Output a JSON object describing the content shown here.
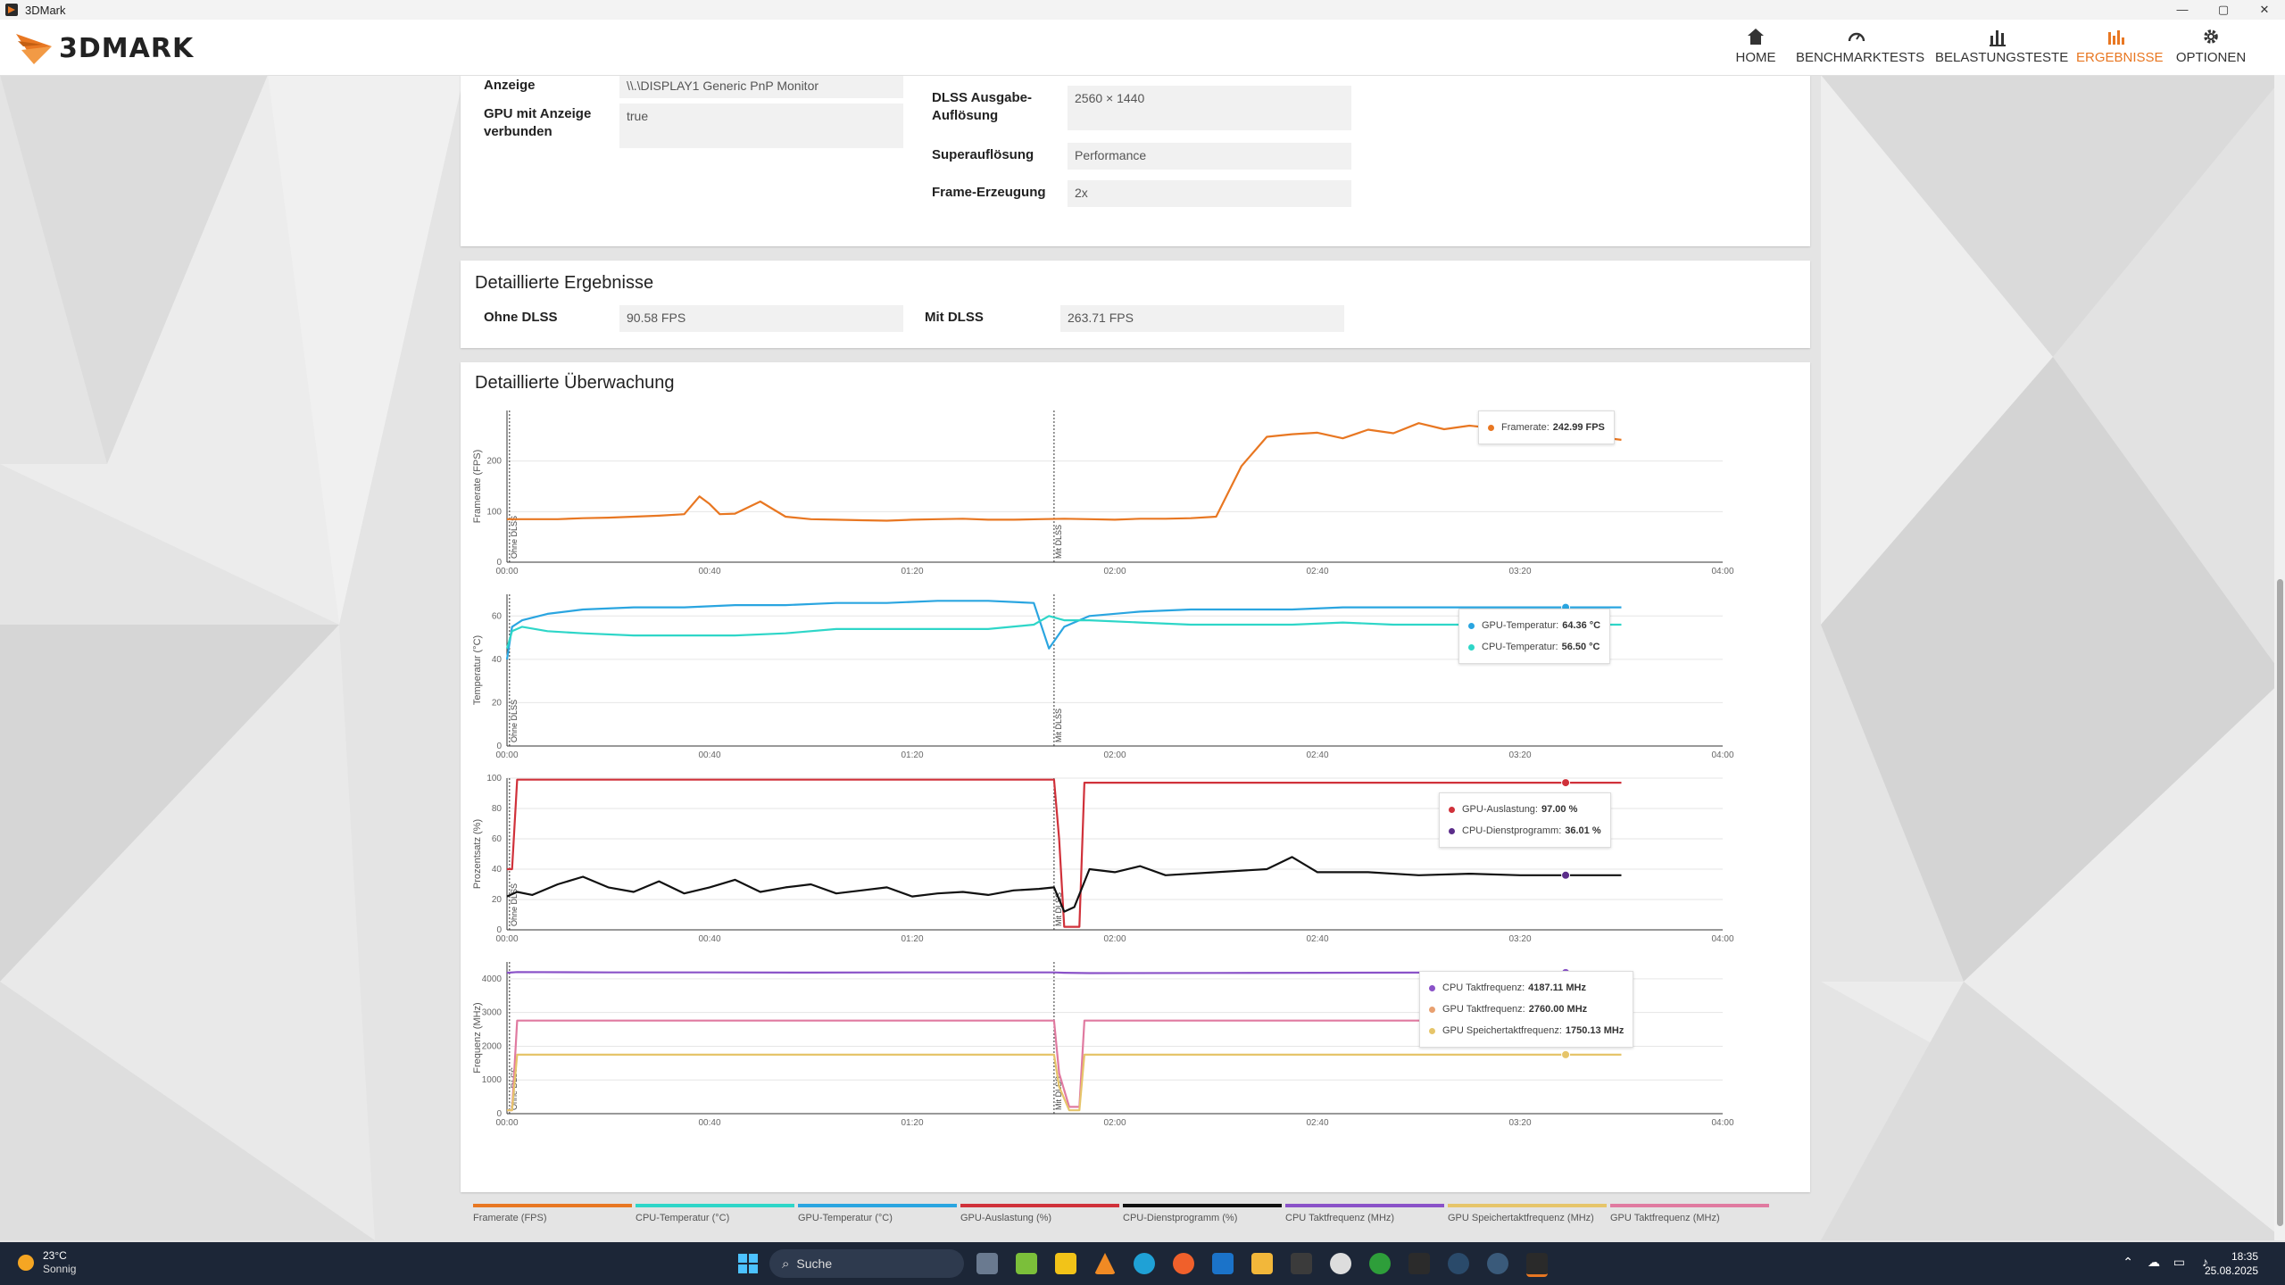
{
  "window": {
    "title": "3DMark",
    "controls": [
      "—",
      "▢",
      "✕"
    ]
  },
  "nav": {
    "logo": "3DMARK",
    "items": [
      {
        "label": "HOME",
        "icon": "home-icon"
      },
      {
        "label": "BENCHMARKTESTS",
        "icon": "gauge-icon"
      },
      {
        "label": "BELASTUNGSTESTE",
        "icon": "bar-chart-icon"
      },
      {
        "label": "ERGEBNISSE",
        "icon": "results-icon",
        "active": true
      },
      {
        "label": "OPTIONEN",
        "icon": "gear-icon"
      }
    ]
  },
  "top_panel": {
    "anzeige_label": "Anzeige",
    "anzeige_value": "\\\\.\\DISPLAY1 Generic PnP Monitor",
    "gpu_label": "GPU mit Anzeige verbunden",
    "gpu_value": "true",
    "dlss_res_label": "DLSS Ausgabe-Auflösung",
    "dlss_res_value": "2560 × 1440",
    "superres_label": "Superauflösung",
    "superres_value": "Performance",
    "framegen_label": "Frame-Erzeugung",
    "framegen_value": "2x"
  },
  "results": {
    "title": "Detaillierte Ergebnisse",
    "ohne_label": "Ohne DLSS",
    "ohne_value": "90.58 FPS",
    "mit_label": "Mit DLSS",
    "mit_value": "263.71 FPS"
  },
  "monitoring": {
    "title": "Detaillierte Überwachung",
    "x_ticks": [
      "00:00",
      "00:40",
      "01:20",
      "02:00",
      "02:40",
      "03:20",
      "04:00"
    ],
    "marker_ohne": "Ohne DLSS",
    "marker_mit": "Mit DLSS"
  },
  "chart_data": [
    {
      "type": "line",
      "ylabel": "Framerate (FPS)",
      "ylim": [
        0,
        300
      ],
      "y_ticks": [
        0,
        100,
        200
      ],
      "x_range_s": [
        0,
        240
      ],
      "series": [
        {
          "name": "Framerate (FPS)",
          "color": "#e87722",
          "x": [
            0,
            5,
            10,
            15,
            20,
            25,
            30,
            35,
            38,
            40,
            42,
            45,
            50,
            55,
            60,
            65,
            70,
            75,
            80,
            85,
            90,
            95,
            100,
            105,
            110,
            115,
            120,
            125,
            130,
            135,
            140,
            145,
            150,
            155,
            160,
            165,
            170,
            175,
            180,
            185,
            190,
            195,
            200,
            205,
            210,
            215,
            220
          ],
          "y": [
            85,
            85,
            85,
            87,
            88,
            90,
            92,
            95,
            130,
            115,
            95,
            96,
            120,
            90,
            85,
            84,
            83,
            82,
            84,
            85,
            86,
            84,
            84,
            85,
            86,
            85,
            84,
            86,
            86,
            87,
            90,
            190,
            248,
            253,
            256,
            245,
            262,
            255,
            275,
            263,
            270,
            265,
            265,
            258,
            242,
            248,
            242
          ]
        }
      ],
      "tooltip": [
        {
          "label": "Framerate:",
          "value": "242.99 FPS",
          "color": "#e87722"
        }
      ]
    },
    {
      "type": "line",
      "ylabel": "Temperatur (°C)",
      "ylim": [
        0,
        70
      ],
      "y_ticks": [
        0,
        20,
        40,
        60
      ],
      "x_range_s": [
        0,
        240
      ],
      "series": [
        {
          "name": "GPU-Temperatur (°C)",
          "color": "#2aa5e0",
          "x": [
            0,
            1,
            3,
            8,
            15,
            25,
            35,
            45,
            55,
            65,
            75,
            85,
            95,
            104,
            107,
            110,
            115,
            125,
            135,
            145,
            155,
            165,
            175,
            185,
            195,
            205,
            215,
            220
          ],
          "y": [
            40,
            55,
            58,
            61,
            63,
            64,
            64,
            65,
            65,
            66,
            66,
            67,
            67,
            66,
            45,
            55,
            60,
            62,
            63,
            63,
            63,
            64,
            64,
            64,
            64,
            64,
            64,
            64
          ]
        },
        {
          "name": "CPU-Temperatur (°C)",
          "color": "#2ed6c8",
          "x": [
            0,
            1,
            3,
            8,
            15,
            25,
            35,
            45,
            55,
            65,
            75,
            85,
            95,
            104,
            107,
            110,
            115,
            125,
            135,
            145,
            155,
            165,
            175,
            185,
            195,
            205,
            215,
            220
          ],
          "y": [
            45,
            53,
            55,
            53,
            52,
            51,
            51,
            51,
            52,
            54,
            54,
            54,
            54,
            56,
            60,
            58,
            58,
            57,
            56,
            56,
            56,
            57,
            56,
            56,
            56,
            57,
            56,
            56
          ]
        }
      ],
      "tooltip": [
        {
          "label": "GPU-Temperatur:",
          "value": "64.36 °C",
          "color": "#2aa5e0"
        },
        {
          "label": "CPU-Temperatur:",
          "value": "56.50 °C",
          "color": "#2ed6c8"
        }
      ]
    },
    {
      "type": "line",
      "ylabel": "Prozentsatz (%)",
      "ylim": [
        0,
        100
      ],
      "y_ticks": [
        0,
        20,
        40,
        60,
        80,
        100
      ],
      "x_range_s": [
        0,
        240
      ],
      "series": [
        {
          "name": "GPU-Auslastung (%)",
          "color": "#d0313a",
          "x": [
            0,
            1,
            2,
            108,
            109,
            110,
            111,
            113,
            114,
            120,
            140,
            160,
            180,
            200,
            220
          ],
          "y": [
            40,
            40,
            99,
            99,
            60,
            2,
            2,
            2,
            97,
            97,
            97,
            97,
            97,
            97,
            97
          ]
        },
        {
          "name": "CPU-Dienstprogramm (%)",
          "color": "#111111",
          "x": [
            0,
            2,
            5,
            10,
            15,
            20,
            25,
            30,
            35,
            40,
            45,
            50,
            55,
            60,
            65,
            70,
            75,
            80,
            85,
            90,
            95,
            100,
            105,
            108,
            110,
            112,
            115,
            120,
            125,
            130,
            140,
            150,
            155,
            160,
            170,
            180,
            190,
            200,
            210,
            220
          ],
          "y": [
            22,
            25,
            23,
            30,
            35,
            28,
            25,
            32,
            24,
            28,
            33,
            25,
            28,
            30,
            24,
            26,
            28,
            22,
            24,
            25,
            23,
            26,
            27,
            28,
            12,
            15,
            40,
            38,
            42,
            36,
            38,
            40,
            48,
            38,
            38,
            36,
            37,
            36,
            36,
            36
          ],
          "hidden_color_hint": "#7b3fa0"
        }
      ],
      "tooltip": [
        {
          "label": "GPU-Auslastung:",
          "value": "97.00 %",
          "color": "#d0313a"
        },
        {
          "label": "CPU-Dienstprogramm:",
          "value": "36.01 %",
          "color": "#5b2d8a"
        }
      ]
    },
    {
      "type": "line",
      "ylabel": "Frequenz (MHz)",
      "ylim": [
        0,
        4500
      ],
      "y_ticks": [
        0,
        1000,
        2000,
        3000,
        4000
      ],
      "x_range_s": [
        0,
        240
      ],
      "series": [
        {
          "name": "CPU Taktfrequenz (MHz)",
          "color": "#8a52c8",
          "x": [
            0,
            2,
            20,
            40,
            60,
            80,
            100,
            108,
            110,
            115,
            140,
            160,
            180,
            200,
            220
          ],
          "y": [
            4180,
            4200,
            4190,
            4190,
            4185,
            4190,
            4190,
            4190,
            4180,
            4170,
            4175,
            4180,
            4185,
            4187,
            4187
          ]
        },
        {
          "name": "GPU Taktfrequenz (MHz)",
          "color": "#e07aa0",
          "x": [
            0,
            1,
            2,
            108,
            109,
            111,
            112,
            113,
            114,
            140,
            160,
            180,
            200,
            220
          ],
          "y": [
            100,
            100,
            2760,
            2760,
            1200,
            200,
            200,
            200,
            2760,
            2760,
            2760,
            2760,
            2760,
            2760
          ]
        },
        {
          "name": "GPU Speichertaktfrequenz (MHz)",
          "color": "#e6c56a",
          "x": [
            0,
            1,
            2,
            108,
            109,
            111,
            112,
            113,
            114,
            140,
            160,
            180,
            200,
            220
          ],
          "y": [
            100,
            100,
            1750,
            1750,
            800,
            100,
            100,
            100,
            1750,
            1750,
            1750,
            1750,
            1750,
            1750
          ]
        }
      ],
      "tooltip": [
        {
          "label": "CPU Taktfrequenz:",
          "value": "4187.11 MHz",
          "color": "#8a52c8"
        },
        {
          "label": "GPU Taktfrequenz:",
          "value": "2760.00 MHz",
          "color": "#e8a070"
        },
        {
          "label": "GPU Speichertaktfrequenz:",
          "value": "1750.13 MHz",
          "color": "#e6c56a"
        }
      ]
    }
  ],
  "legend": [
    {
      "label": "Framerate (FPS)",
      "color": "#e87722"
    },
    {
      "label": "CPU-Temperatur (°C)",
      "color": "#2ed6c8"
    },
    {
      "label": "GPU-Temperatur (°C)",
      "color": "#2aa5e0"
    },
    {
      "label": "GPU-Auslastung (%)",
      "color": "#d0313a"
    },
    {
      "label": "CPU-Dienstprogramm (%)",
      "color": "#111111"
    },
    {
      "label": "CPU Taktfrequenz (MHz)",
      "color": "#8a52c8"
    },
    {
      "label": "GPU Speichertaktfrequenz (MHz)",
      "color": "#e6c56a"
    },
    {
      "label": "GPU Taktfrequenz (MHz)",
      "color": "#e07aa0"
    }
  ],
  "taskbar": {
    "weather_temp": "23°C",
    "weather_desc": "Sonnig",
    "search_placeholder": "Suche",
    "time": "18:35",
    "date": "25.08.2025"
  }
}
